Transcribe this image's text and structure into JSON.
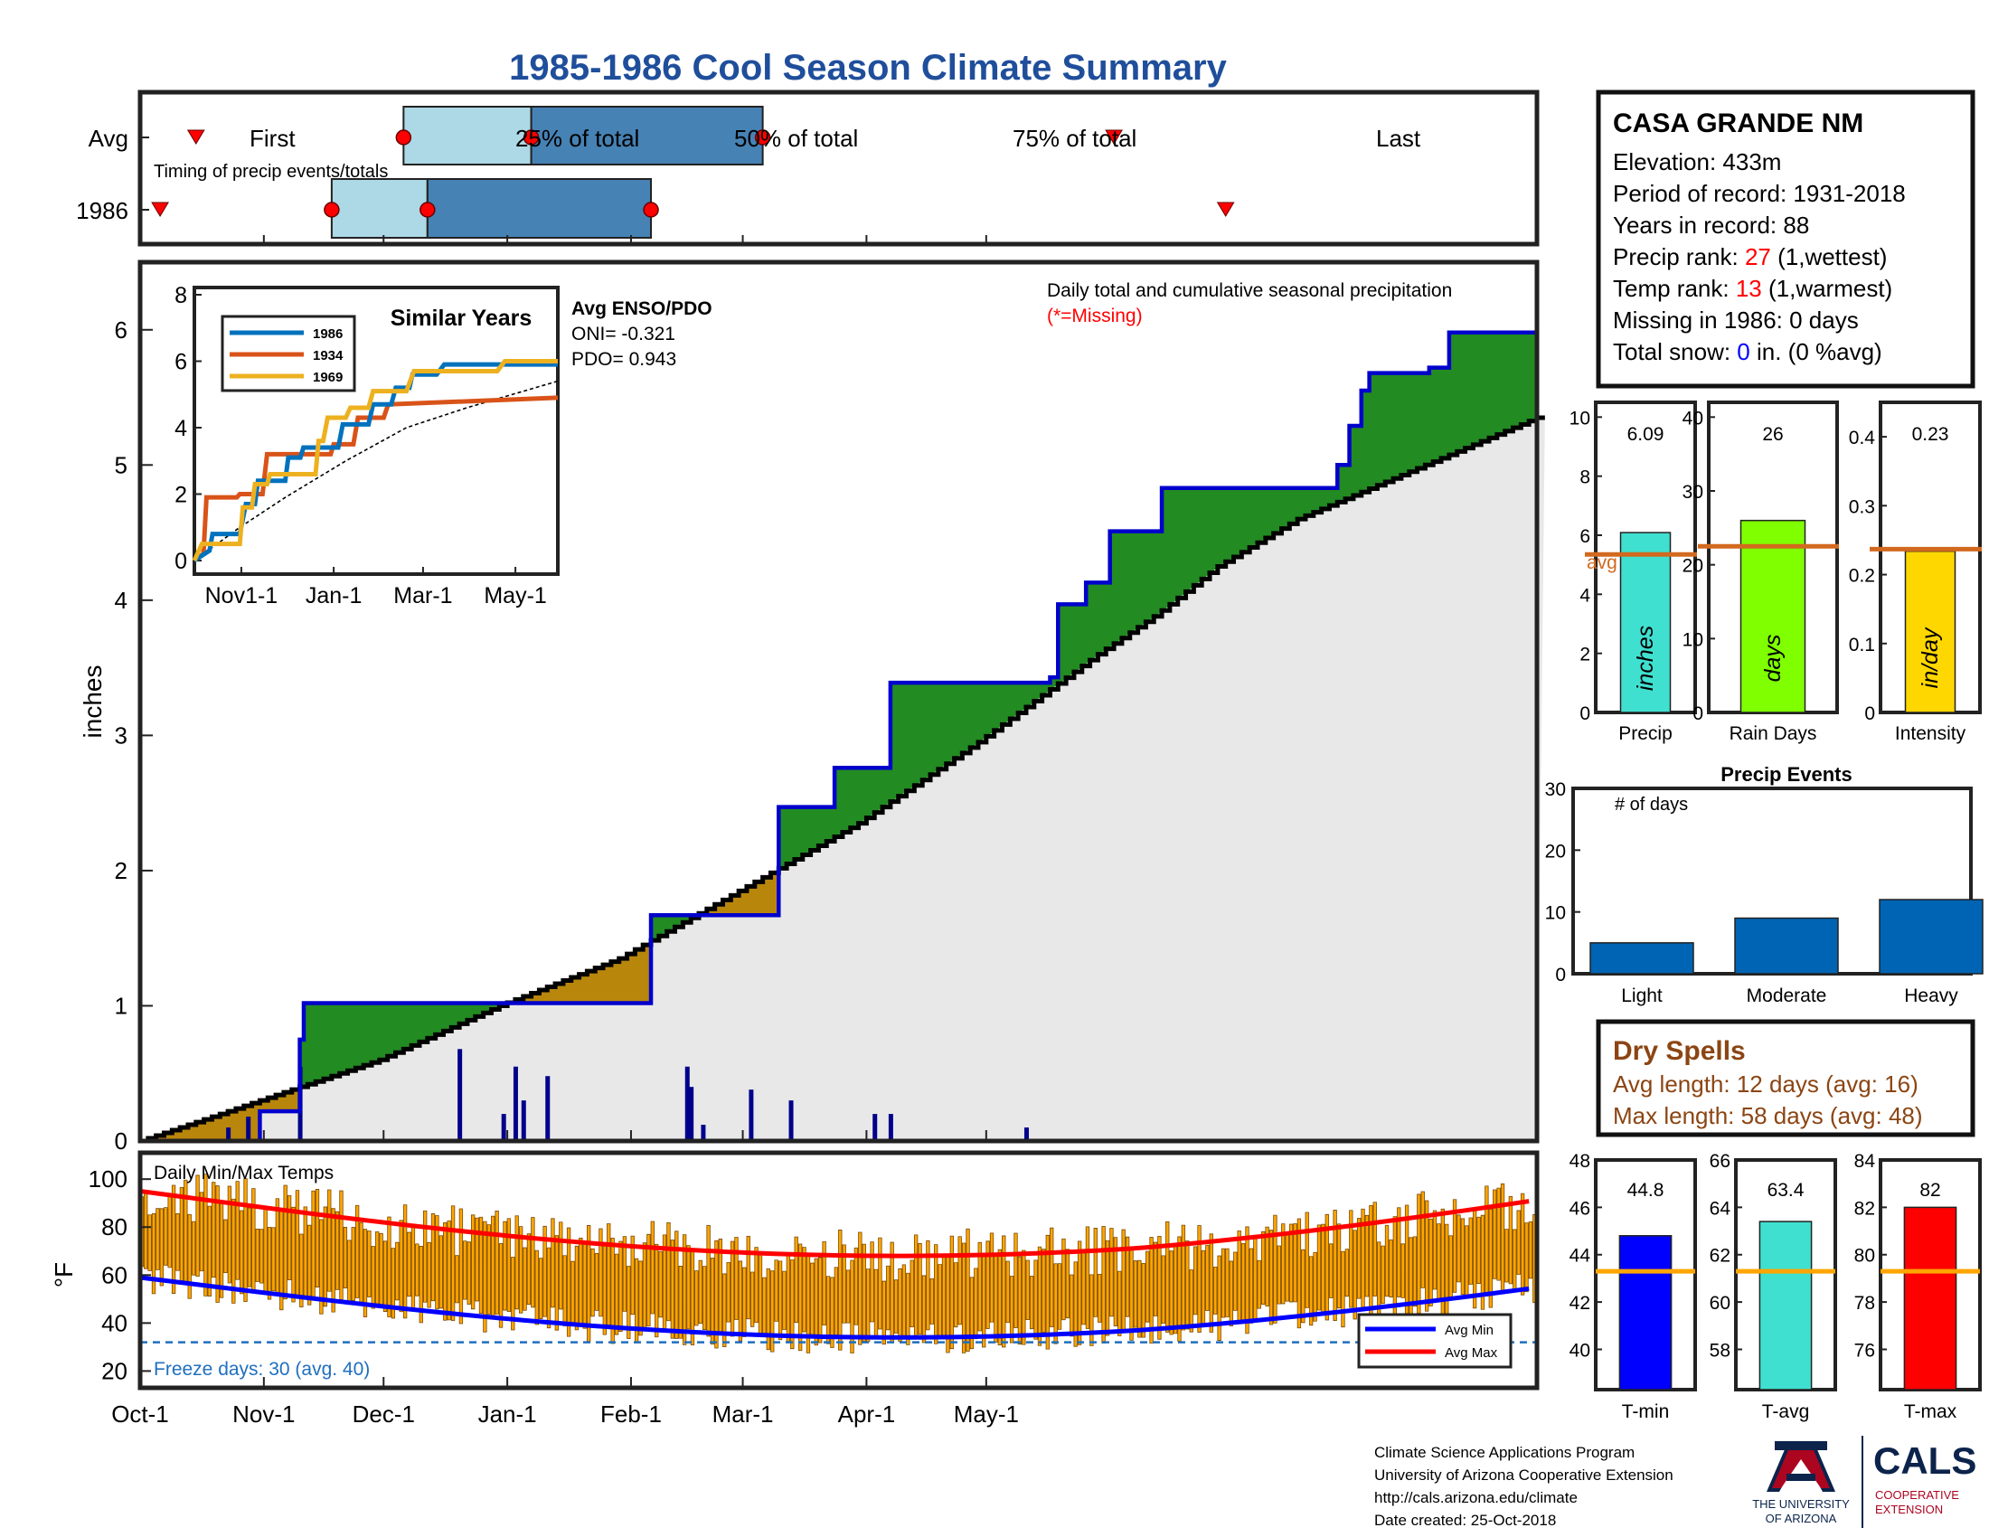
{
  "title": "1985-1986 Cool Season Climate Summary",
  "timing": {
    "row_avg": "Avg",
    "row_year": "1986",
    "caption": "Timing of precip events/totals",
    "first_label": "First",
    "q25_label": "25% of total",
    "q50_label": "50% of total",
    "q75_label": "75% of total",
    "last_label": "Last",
    "avg_days": {
      "first": 14,
      "q25": 66,
      "q50": 98,
      "q75": 156,
      "last": 244
    },
    "year_days": {
      "first": 5,
      "q25": 48,
      "q50": 72,
      "q75": 128,
      "last": 272
    }
  },
  "station": {
    "name": "CASA GRANDE NM",
    "elevation": "Elevation: 433m",
    "period": "Period of record: 1931-2018",
    "years": "Years in record: 88",
    "precip_rank_prefix": "Precip rank: ",
    "precip_rank_value": "27",
    "precip_rank_suffix": " (1,wettest)",
    "temp_rank_prefix": "Temp rank: ",
    "temp_rank_value": "13",
    "temp_rank_suffix": " (1,warmest)",
    "missing": "Missing in 1986: 0 days",
    "snow_prefix": "Total snow: ",
    "snow_value": "0",
    "snow_suffix": " in. (0 %avg)"
  },
  "precip_panel": {
    "ylabel": "inches",
    "yticks": [
      "0",
      "1",
      "2",
      "3",
      "4",
      "5",
      "6"
    ],
    "caption": "Daily total and cumulative seasonal precipitation",
    "missing_note": "(*=Missing)",
    "enso_title": "Avg ENSO/PDO",
    "oni": "ONI= -0.321",
    "pdo": "PDO= 0.943"
  },
  "inset": {
    "title": "Similar Years",
    "yticks": [
      "0",
      "2",
      "4",
      "6",
      "8"
    ],
    "xticks": [
      "Nov1-1",
      "Jan-1",
      "Mar-1",
      "May-1"
    ],
    "legend": [
      {
        "name": "1986",
        "color": "#0072bd"
      },
      {
        "name": "1934",
        "color": "#d95319"
      },
      {
        "name": "1969",
        "color": "#edb120"
      }
    ]
  },
  "temp_panel": {
    "title": "Daily Min/Max Temps",
    "ylabel": "°F",
    "yticks": [
      "20",
      "40",
      "60",
      "80",
      "100"
    ],
    "freeze_label": "Freeze days: 30 (avg. 40)",
    "legend_min": "Avg Min",
    "legend_max": "Avg Max"
  },
  "xaxis": {
    "ticks": [
      "Oct-1",
      "Nov-1",
      "Dec-1",
      "Jan-1",
      "Feb-1",
      "Mar-1",
      "Apr-1",
      "May-1"
    ]
  },
  "summary_bars": [
    {
      "label": "Precip",
      "unit": "inches",
      "value_label": "6.09",
      "value": 6.09,
      "avg": 5.35,
      "avg_label": "avg",
      "ymax": 10.5,
      "yticks": [
        "0",
        "2",
        "4",
        "6",
        "8",
        "10"
      ],
      "color": "#40e0d0"
    },
    {
      "label": "Rain Days",
      "unit": "days",
      "value_label": "26",
      "value": 26,
      "avg": 22.5,
      "ymax": 42,
      "yticks": [
        "0",
        "10",
        "20",
        "30",
        "40"
      ],
      "color": "#7fff00"
    },
    {
      "label": "Intensity",
      "unit": "in/day",
      "value_label": "0.23",
      "value": 0.234,
      "avg": 0.237,
      "ymax": 0.45,
      "yticks": [
        "0",
        "0.1",
        "0.2",
        "0.3",
        "0.4"
      ],
      "color": "#ffd700"
    }
  ],
  "events": {
    "title": "Precip Events",
    "ylabel": "# of days",
    "yticks": [
      "0",
      "10",
      "20",
      "30"
    ],
    "categories": [
      "Light",
      "Moderate",
      "Heavy"
    ],
    "values": [
      5,
      9,
      12
    ]
  },
  "dry_spells": {
    "title": "Dry Spells",
    "avg_line": "Avg length: 12 days (avg: 16)",
    "max_line": "Max length: 58 days (avg: 48)"
  },
  "temp_bars": [
    {
      "label": "T-min",
      "value_label": "44.8",
      "value": 44.8,
      "avg": 43.3,
      "ymin": 38.3,
      "ymax": 48,
      "yticks": [
        "40",
        "42",
        "44",
        "46",
        "48"
      ],
      "color": "#0000ff"
    },
    {
      "label": "T-avg",
      "value_label": "63.4",
      "value": 63.4,
      "avg": 61.3,
      "ymin": 56.3,
      "ymax": 66,
      "yticks": [
        "58",
        "60",
        "62",
        "64",
        "66"
      ],
      "color": "#40e0d0"
    },
    {
      "label": "T-max",
      "value_label": "82",
      "value": 82,
      "avg": 79.3,
      "ymin": 74.3,
      "ymax": 84,
      "yticks": [
        "76",
        "78",
        "80",
        "82",
        "84"
      ],
      "color": "#ff0000"
    }
  ],
  "footer": {
    "line1": "Climate Science Applications Program",
    "line2": "University of Arizona Cooperative Extension",
    "line3": "http://cals.arizona.edu/climate",
    "line4": " Date created: 25-Oct-2018"
  },
  "logos": {
    "ua_line1": "THE UNIVERSITY",
    "ua_line2": "OF ARIZONA",
    "cals": "CALS",
    "coop1": "COOPERATIVE",
    "coop2": "EXTENSION"
  },
  "colors": {
    "title": "#1f4e9b",
    "green": "#228b22",
    "grey": "#e8e8e8",
    "cum_line": "#0000cd",
    "tbars": "#ffa500",
    "red": "#ff0000",
    "brown": "#8b4513"
  },
  "chart_data": {
    "type": "area",
    "ylabel": "inches",
    "ylim": [
      0,
      6.5
    ],
    "x_unit": "day of season starting Oct-1",
    "cumulative_1986": [
      [
        0,
        0
      ],
      [
        30,
        0.22
      ],
      [
        38,
        0.22
      ],
      [
        40,
        0.75
      ],
      [
        41,
        1.02
      ],
      [
        127,
        1.02
      ],
      [
        128,
        1.67
      ],
      [
        158,
        1.67
      ],
      [
        160,
        2.47
      ],
      [
        171,
        2.47
      ],
      [
        174,
        2.76
      ],
      [
        184,
        2.76
      ],
      [
        188,
        3.39
      ],
      [
        224,
        3.39
      ],
      [
        228,
        3.43
      ],
      [
        230,
        3.97
      ],
      [
        236,
        3.97
      ],
      [
        237,
        4.13
      ],
      [
        242,
        4.13
      ],
      [
        243,
        4.51
      ],
      [
        255,
        4.51
      ],
      [
        256,
        4.83
      ],
      [
        299,
        4.83
      ],
      [
        300,
        5.0
      ],
      [
        302,
        5.0
      ],
      [
        303,
        5.29
      ],
      [
        305,
        5.29
      ],
      [
        306,
        5.55
      ],
      [
        307,
        5.55
      ],
      [
        308,
        5.68
      ],
      [
        320,
        5.68
      ],
      [
        323,
        5.72
      ],
      [
        326,
        5.72
      ],
      [
        328,
        5.98
      ],
      [
        346,
        5.98
      ],
      [
        350,
        6.09
      ]
    ],
    "average_cumulative": [
      [
        0,
        0
      ],
      [
        30,
        0.3
      ],
      [
        60,
        0.6
      ],
      [
        90,
        1.0
      ],
      [
        120,
        1.35
      ],
      [
        150,
        1.85
      ],
      [
        180,
        2.35
      ],
      [
        210,
        2.95
      ],
      [
        240,
        3.6
      ],
      [
        255,
        3.9
      ],
      [
        270,
        4.25
      ],
      [
        290,
        4.6
      ],
      [
        310,
        4.85
      ],
      [
        330,
        5.1
      ],
      [
        350,
        5.35
      ]
    ],
    "daily_1986": [
      [
        22,
        0.1
      ],
      [
        27,
        0.18
      ],
      [
        40,
        0.55
      ],
      [
        80,
        0.68
      ],
      [
        91,
        0.2
      ],
      [
        94,
        0.55
      ],
      [
        96,
        0.3
      ],
      [
        102,
        0.48
      ],
      [
        137,
        0.55
      ],
      [
        138,
        0.4
      ],
      [
        141,
        0.12
      ],
      [
        153,
        0.38
      ],
      [
        163,
        0.3
      ],
      [
        184,
        0.2
      ],
      [
        188,
        0.2
      ],
      [
        222,
        0.1
      ]
    ]
  }
}
